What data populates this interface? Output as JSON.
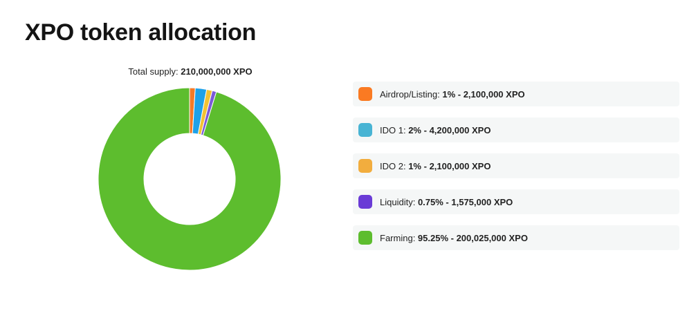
{
  "page": {
    "title": "XPO token allocation"
  },
  "chart_data": {
    "type": "pie",
    "variant": "donut",
    "supply_label": "Total supply:",
    "supply_value": "210,000,000 XPO",
    "legend_placement": "right",
    "slices": [
      {
        "name": "Airdrop/Listing",
        "percent": 1,
        "percent_label": "1%",
        "amount_label": "2,100,000 XPO",
        "color": "#f57a26"
      },
      {
        "name": "IDO 1",
        "percent": 2,
        "percent_label": "2%",
        "amount_label": "4,200,000 XPO",
        "color": "#1ea1e8"
      },
      {
        "name": "IDO 2",
        "percent": 1,
        "percent_label": "1%",
        "amount_label": "2,100,000 XPO",
        "color": "#f2c233"
      },
      {
        "name": "Liquidity",
        "percent": 0.75,
        "percent_label": "0.75%",
        "amount_label": "1,575,000 XPO",
        "color": "#7b5ad8"
      },
      {
        "name": "Farming",
        "percent": 95.25,
        "percent_label": "95.25%",
        "amount_label": "200,025,000 XPO",
        "color": "#5dbd2e"
      }
    ],
    "legend_swatch_colors": [
      "#fa7a22",
      "#48b4d4",
      "#f2ad3e",
      "#6a3bd6",
      "#5dbd2e"
    ]
  }
}
